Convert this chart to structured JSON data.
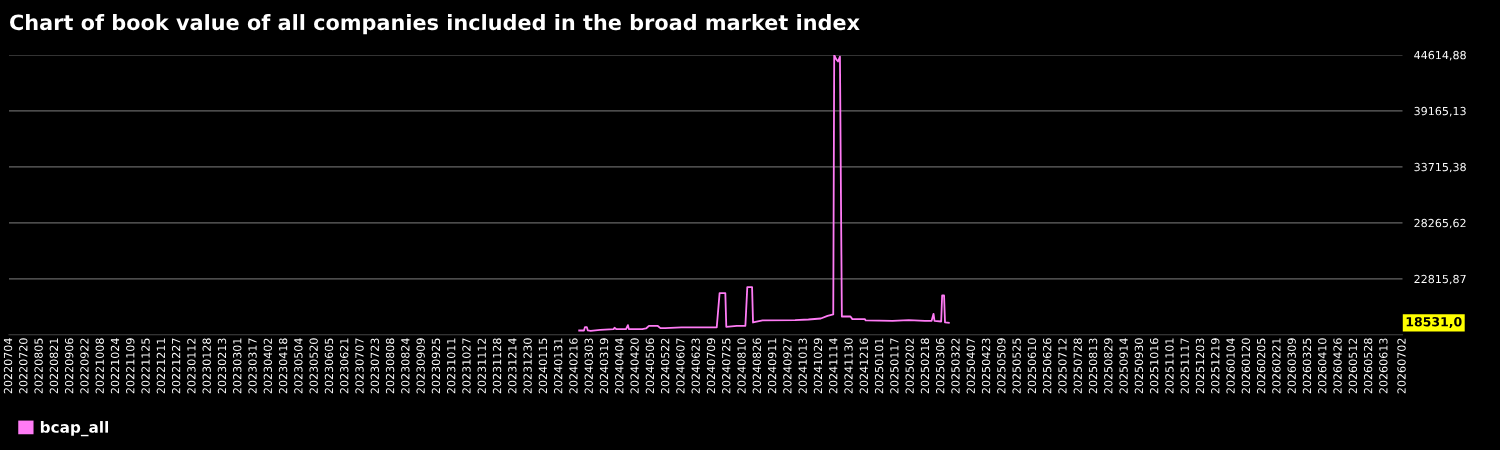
{
  "chart_data": {
    "type": "line",
    "title": "Chart of book value of all companies included in the broad market index",
    "x": [
      "2024-02-21",
      "2024-02-26",
      "2024-02-27",
      "2024-02-29",
      "2024-03-01",
      "2024-03-04",
      "2024-03-14",
      "2024-03-28",
      "2024-03-29",
      "2024-03-31",
      "2024-04-10",
      "2024-04-12",
      "2024-04-13",
      "2024-04-27",
      "2024-05-01",
      "2024-05-04",
      "2024-05-13",
      "2024-05-16",
      "2024-05-21",
      "2024-06-07",
      "2024-07-14",
      "2024-07-17",
      "2024-07-23",
      "2024-07-24",
      "2024-08-04",
      "2024-08-13",
      "2024-08-15",
      "2024-08-20",
      "2024-08-21",
      "2024-08-31",
      "2024-10-04",
      "2024-10-18",
      "2024-10-31",
      "2024-11-07",
      "2024-11-11",
      "2024-11-13",
      "2024-11-14",
      "2024-11-16",
      "2024-11-18",
      "2024-11-20",
      "2024-11-22",
      "2024-12-01",
      "2024-12-03",
      "2024-12-16",
      "2024-12-17",
      "2025-01-14",
      "2025-01-31",
      "2025-02-17",
      "2025-02-24",
      "2025-02-26",
      "2025-02-27",
      "2025-03-06",
      "2025-03-07",
      "2025-03-09",
      "2025-03-10",
      "2025-03-14"
    ],
    "series": [
      {
        "name": "bcap_all",
        "color": "#ff7bf5",
        "values": [
          17787,
          17787,
          18112,
          18112,
          17787,
          17755,
          17853,
          17917,
          18047,
          17917,
          17917,
          18307,
          17917,
          17917,
          17982,
          18242,
          18242,
          18015,
          18015,
          18080,
          18080,
          21421,
          21421,
          18145,
          18242,
          18242,
          22005,
          22005,
          18566,
          18761,
          18793,
          18858,
          18955,
          19215,
          19312,
          19345,
          44600,
          44200,
          43975,
          44440,
          19150,
          19150,
          18891,
          18891,
          18761,
          18728,
          18793,
          18728,
          18728,
          19410,
          18728,
          18663,
          21194,
          21194,
          18566,
          18531
        ]
      }
    ],
    "ylim": [
      17366.12,
      44614.88
    ],
    "yticks": [
      {
        "value": 22815.87,
        "label": "22815,87"
      },
      {
        "value": 28265.62,
        "label": "28265,62"
      },
      {
        "value": 33715.38,
        "label": "33715,38"
      },
      {
        "value": 39165.13,
        "label": "39165,13"
      },
      {
        "value": 44614.88,
        "label": "44614,88"
      }
    ],
    "xlim": [
      "2022-07-04",
      "2026-07-02"
    ],
    "xticks": [
      {
        "value": "2022-07-04",
        "label": "20220704"
      },
      {
        "value": "2022-07-20",
        "label": "20220720"
      },
      {
        "value": "2022-08-05",
        "label": "20220805"
      },
      {
        "value": "2022-08-21",
        "label": "20220821"
      },
      {
        "value": "2022-09-06",
        "label": "20220906"
      },
      {
        "value": "2022-09-22",
        "label": "20220922"
      },
      {
        "value": "2022-10-08",
        "label": "20221008"
      },
      {
        "value": "2022-10-24",
        "label": "20221024"
      },
      {
        "value": "2022-11-09",
        "label": "20221109"
      },
      {
        "value": "2022-11-25",
        "label": "20221125"
      },
      {
        "value": "2022-12-11",
        "label": "20221211"
      },
      {
        "value": "2022-12-27",
        "label": "20221227"
      },
      {
        "value": "2023-01-12",
        "label": "20230112"
      },
      {
        "value": "2023-01-28",
        "label": "20230128"
      },
      {
        "value": "2023-02-13",
        "label": "20230213"
      },
      {
        "value": "2023-03-01",
        "label": "20230301"
      },
      {
        "value": "2023-03-17",
        "label": "20230317"
      },
      {
        "value": "2023-04-02",
        "label": "20230402"
      },
      {
        "value": "2023-04-18",
        "label": "20230418"
      },
      {
        "value": "2023-05-04",
        "label": "20230504"
      },
      {
        "value": "2023-05-20",
        "label": "20230520"
      },
      {
        "value": "2023-06-05",
        "label": "20230605"
      },
      {
        "value": "2023-06-21",
        "label": "20230621"
      },
      {
        "value": "2023-07-07",
        "label": "20230707"
      },
      {
        "value": "2023-07-23",
        "label": "20230723"
      },
      {
        "value": "2023-08-08",
        "label": "20230808"
      },
      {
        "value": "2023-08-24",
        "label": "20230824"
      },
      {
        "value": "2023-09-09",
        "label": "20230909"
      },
      {
        "value": "2023-09-25",
        "label": "20230925"
      },
      {
        "value": "2023-10-11",
        "label": "20231011"
      },
      {
        "value": "2023-10-27",
        "label": "20231027"
      },
      {
        "value": "2023-11-12",
        "label": "20231112"
      },
      {
        "value": "2023-11-28",
        "label": "20231128"
      },
      {
        "value": "2023-12-14",
        "label": "20231214"
      },
      {
        "value": "2023-12-30",
        "label": "20231230"
      },
      {
        "value": "2024-01-15",
        "label": "20240115"
      },
      {
        "value": "2024-01-31",
        "label": "20240131"
      },
      {
        "value": "2024-02-16",
        "label": "20240216"
      },
      {
        "value": "2024-03-03",
        "label": "20240303"
      },
      {
        "value": "2024-03-19",
        "label": "20240319"
      },
      {
        "value": "2024-04-04",
        "label": "20240404"
      },
      {
        "value": "2024-04-20",
        "label": "20240420"
      },
      {
        "value": "2024-05-06",
        "label": "20240506"
      },
      {
        "value": "2024-05-22",
        "label": "20240522"
      },
      {
        "value": "2024-06-07",
        "label": "20240607"
      },
      {
        "value": "2024-06-23",
        "label": "20240623"
      },
      {
        "value": "2024-07-09",
        "label": "20240709"
      },
      {
        "value": "2024-07-25",
        "label": "20240725"
      },
      {
        "value": "2024-08-10",
        "label": "20240810"
      },
      {
        "value": "2024-08-26",
        "label": "20240826"
      },
      {
        "value": "2024-09-11",
        "label": "20240911"
      },
      {
        "value": "2024-09-27",
        "label": "20240927"
      },
      {
        "value": "2024-10-13",
        "label": "20241013"
      },
      {
        "value": "2024-10-29",
        "label": "20241029"
      },
      {
        "value": "2024-11-14",
        "label": "20241114"
      },
      {
        "value": "2024-11-30",
        "label": "20241130"
      },
      {
        "value": "2024-12-16",
        "label": "20241216"
      },
      {
        "value": "2025-01-01",
        "label": "20250101"
      },
      {
        "value": "2025-01-17",
        "label": "20250117"
      },
      {
        "value": "2025-02-02",
        "label": "20250202"
      },
      {
        "value": "2025-02-18",
        "label": "20250218"
      },
      {
        "value": "2025-03-06",
        "label": "20250306"
      },
      {
        "value": "2025-03-22",
        "label": "20250322"
      },
      {
        "value": "2025-04-07",
        "label": "20250407"
      },
      {
        "value": "2025-04-23",
        "label": "20250423"
      },
      {
        "value": "2025-05-09",
        "label": "20250509"
      },
      {
        "value": "2025-05-25",
        "label": "20250525"
      },
      {
        "value": "2025-06-10",
        "label": "20250610"
      },
      {
        "value": "2025-06-26",
        "label": "20250626"
      },
      {
        "value": "2025-07-12",
        "label": "20250712"
      },
      {
        "value": "2025-07-28",
        "label": "20250728"
      },
      {
        "value": "2025-08-13",
        "label": "20250813"
      },
      {
        "value": "2025-08-29",
        "label": "20250829"
      },
      {
        "value": "2025-09-14",
        "label": "20250914"
      },
      {
        "value": "2025-09-30",
        "label": "20250930"
      },
      {
        "value": "2025-10-16",
        "label": "20251016"
      },
      {
        "value": "2025-11-01",
        "label": "20251101"
      },
      {
        "value": "2025-11-17",
        "label": "20251117"
      },
      {
        "value": "2025-12-03",
        "label": "20251203"
      },
      {
        "value": "2025-12-19",
        "label": "20251219"
      },
      {
        "value": "2026-01-04",
        "label": "20260104"
      },
      {
        "value": "2026-01-20",
        "label": "20260120"
      },
      {
        "value": "2026-02-05",
        "label": "20260205"
      },
      {
        "value": "2026-02-21",
        "label": "20260221"
      },
      {
        "value": "2026-03-09",
        "label": "20260309"
      },
      {
        "value": "2026-03-25",
        "label": "20260325"
      },
      {
        "value": "2026-04-10",
        "label": "20260410"
      },
      {
        "value": "2026-04-26",
        "label": "20260426"
      },
      {
        "value": "2026-05-12",
        "label": "20260512"
      },
      {
        "value": "2026-05-28",
        "label": "20260528"
      },
      {
        "value": "2026-06-13",
        "label": "20260613"
      },
      {
        "value": "2026-07-02",
        "label": "20260702"
      }
    ],
    "annotations": [
      "18531,0"
    ],
    "grid": "y",
    "legend": "bottom left",
    "marker": "none",
    "line_style": "solid"
  }
}
